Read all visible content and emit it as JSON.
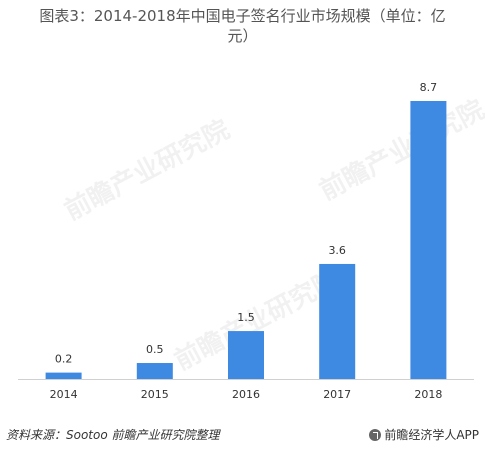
{
  "chart_data": {
    "type": "bar",
    "title_line1": "图表3：2014-2018年中国电子签名行业市场规模（单位：亿",
    "title_line2": "元）",
    "categories": [
      "2014",
      "2015",
      "2016",
      "2017",
      "2018"
    ],
    "values": [
      0.2,
      0.5,
      1.5,
      3.6,
      8.7
    ],
    "value_labels": [
      "0.2",
      "0.5",
      "1.5",
      "3.6",
      "8.7"
    ],
    "ylim": [
      0,
      9.2
    ],
    "bar_color": "#3e89e2",
    "grid": false,
    "legend": "none"
  },
  "footer": {
    "source": "资料来源：Sootoo  前瞻产业研究院整理",
    "brand": "前瞻经济学人APP"
  },
  "watermark": {
    "text": "前瞻产业研究院"
  }
}
